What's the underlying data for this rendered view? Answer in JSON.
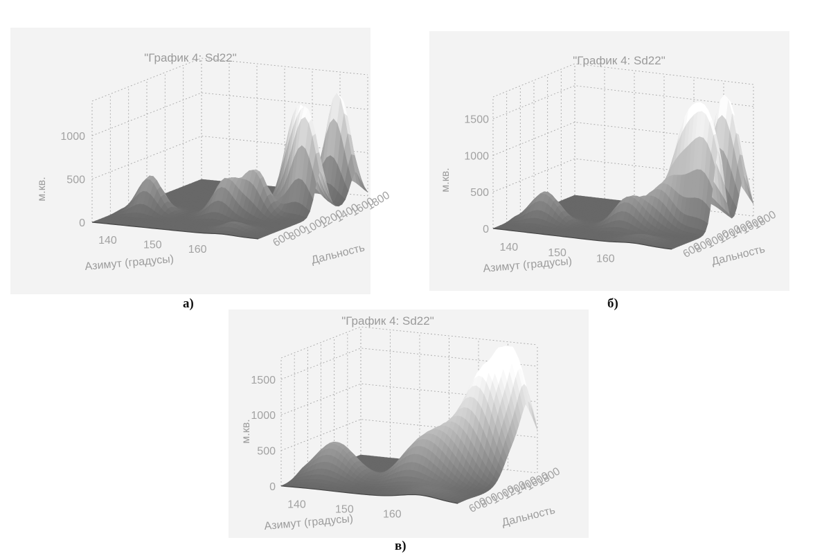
{
  "chart_data": [
    {
      "type": "surface3d",
      "title": "\"График 4: Sd22\"",
      "xlabel": "Азимут (градусы)",
      "ylabel": "Дальность",
      "zlabel": "м.кв.",
      "x_ticks": [
        "140",
        "150",
        "160"
      ],
      "y_ticks": [
        "600",
        "800",
        "1000",
        "1200",
        "1400",
        "1600",
        "1800"
      ],
      "z_ticks": [
        "0",
        "500",
        "1000"
      ],
      "xlim": [
        135,
        172
      ],
      "ylim": [
        500,
        1900
      ],
      "zlim": [
        0,
        1400
      ],
      "grid": true,
      "peaks": [
        {
          "azimuth": 141,
          "range": 900,
          "value": 430
        },
        {
          "azimuth": 156,
          "range": 1000,
          "value": 420
        },
        {
          "azimuth": 161,
          "range": 1100,
          "value": 520
        },
        {
          "azimuth": 165,
          "range": 1400,
          "value": 1050
        },
        {
          "azimuth": 168,
          "range": 1750,
          "value": 1250
        },
        {
          "azimuth": 169,
          "range": 1300,
          "value": 1050
        },
        {
          "azimuth": 164,
          "range": 650,
          "value": 100
        }
      ],
      "caption": "а)"
    },
    {
      "type": "surface3d",
      "title": "\"График 4: Sd22\"",
      "xlabel": "Азимут (градусы)",
      "ylabel": "Дальность",
      "zlabel": "м.кв.",
      "x_ticks": [
        "140",
        "150",
        "160"
      ],
      "y_ticks": [
        "600",
        "800",
        "1000",
        "1200",
        "1400",
        "1600",
        "1800"
      ],
      "z_ticks": [
        "0",
        "500",
        "1000",
        "1500"
      ],
      "xlim": [
        135,
        172
      ],
      "ylim": [
        500,
        1900
      ],
      "zlim": [
        0,
        1800
      ],
      "grid": true,
      "peaks": [
        {
          "azimuth": 141,
          "range": 900,
          "value": 420
        },
        {
          "azimuth": 157,
          "range": 1000,
          "value": 420
        },
        {
          "azimuth": 162,
          "range": 1150,
          "value": 500
        },
        {
          "azimuth": 165,
          "range": 1350,
          "value": 1250
        },
        {
          "azimuth": 168,
          "range": 1750,
          "value": 1700
        },
        {
          "azimuth": 170,
          "range": 1300,
          "value": 1350
        },
        {
          "azimuth": 164,
          "range": 650,
          "value": 90
        }
      ],
      "caption": "б)"
    },
    {
      "type": "surface3d",
      "title": "\"График 4: Sd22\"",
      "xlabel": "Азимут (градусы)",
      "ylabel": "Дальность",
      "zlabel": "м.кв.",
      "x_ticks": [
        "140",
        "150",
        "160"
      ],
      "y_ticks": [
        "600",
        "800",
        "1000",
        "1200",
        "1400",
        "1600",
        "1800"
      ],
      "z_ticks": [
        "0",
        "500",
        "1000",
        "1500"
      ],
      "xlim": [
        135,
        172
      ],
      "ylim": [
        500,
        1900
      ],
      "zlim": [
        0,
        1800
      ],
      "grid": true,
      "peaks": [
        {
          "azimuth": 141,
          "range": 950,
          "value": 520
        },
        {
          "azimuth": 157,
          "range": 1050,
          "value": 480
        },
        {
          "azimuth": 162,
          "range": 1200,
          "value": 560
        },
        {
          "azimuth": 166,
          "range": 1450,
          "value": 1300
        },
        {
          "azimuth": 168,
          "range": 1750,
          "value": 1700
        },
        {
          "azimuth": 164,
          "range": 650,
          "value": 120
        }
      ],
      "caption": "в)"
    }
  ]
}
